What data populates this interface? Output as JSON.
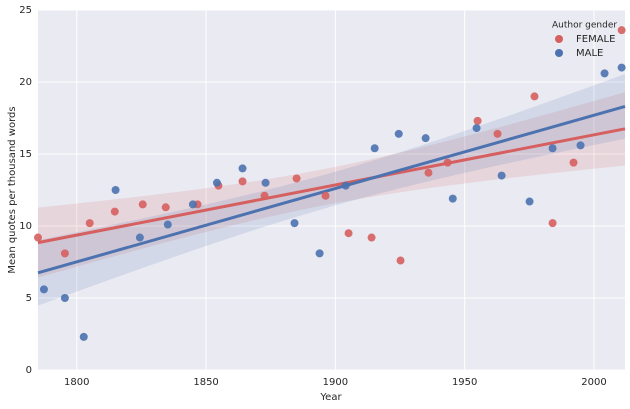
{
  "chart_data": {
    "type": "scatter",
    "x_label": "Year",
    "y_label": "Mean quotes per thousand words",
    "legend_title": "Author gender",
    "legend": "upper right",
    "grid": true,
    "regression": true,
    "xlim": [
      1785,
      2012
    ],
    "xticks": [
      1800,
      1850,
      1900,
      1950,
      2000
    ],
    "ylim": [
      0,
      25
    ],
    "yticks": [
      0,
      5,
      10,
      15,
      20,
      25
    ],
    "series": [
      {
        "name": "FEMALE",
        "color": "#d65f5f",
        "x": [
          1785,
          1795.4,
          1805,
          1814.7,
          1825.5,
          1834.4,
          1846.7,
          1854.8,
          1864.1,
          1872.6,
          1885,
          1896.2,
          1905.1,
          1914,
          1925.2,
          1936,
          1943.4,
          1955,
          1962.7,
          1977,
          1984,
          1992.1,
          2010.7
        ],
        "values": [
          9.2,
          8.1,
          10.2,
          11.0,
          11.5,
          11.3,
          11.5,
          12.8,
          13.1,
          12.1,
          13.3,
          12.1,
          9.5,
          9.2,
          7.6,
          13.7,
          14.4,
          17.3,
          16.4,
          19.0,
          10.2,
          14.4,
          23.6
        ]
      },
      {
        "name": "MALE",
        "color": "#4c72b0",
        "x": [
          1787.3,
          1795.4,
          1802.7,
          1815,
          1824.4,
          1835.2,
          1844.9,
          1854.2,
          1864.1,
          1873,
          1884.2,
          1893.9,
          1904,
          1915.2,
          1924.5,
          1934.9,
          1945.4,
          1954.6,
          1964.3,
          1975.1,
          1984,
          1994.8,
          2004.1,
          2010.7
        ],
        "values": [
          5.6,
          5.0,
          2.3,
          12.5,
          9.2,
          10.1,
          11.5,
          13.0,
          14.0,
          13.0,
          10.2,
          8.1,
          12.8,
          15.4,
          16.4,
          16.1,
          11.9,
          16.8,
          13.5,
          11.7,
          15.4,
          15.6,
          20.6,
          21.0
        ]
      }
    ]
  }
}
